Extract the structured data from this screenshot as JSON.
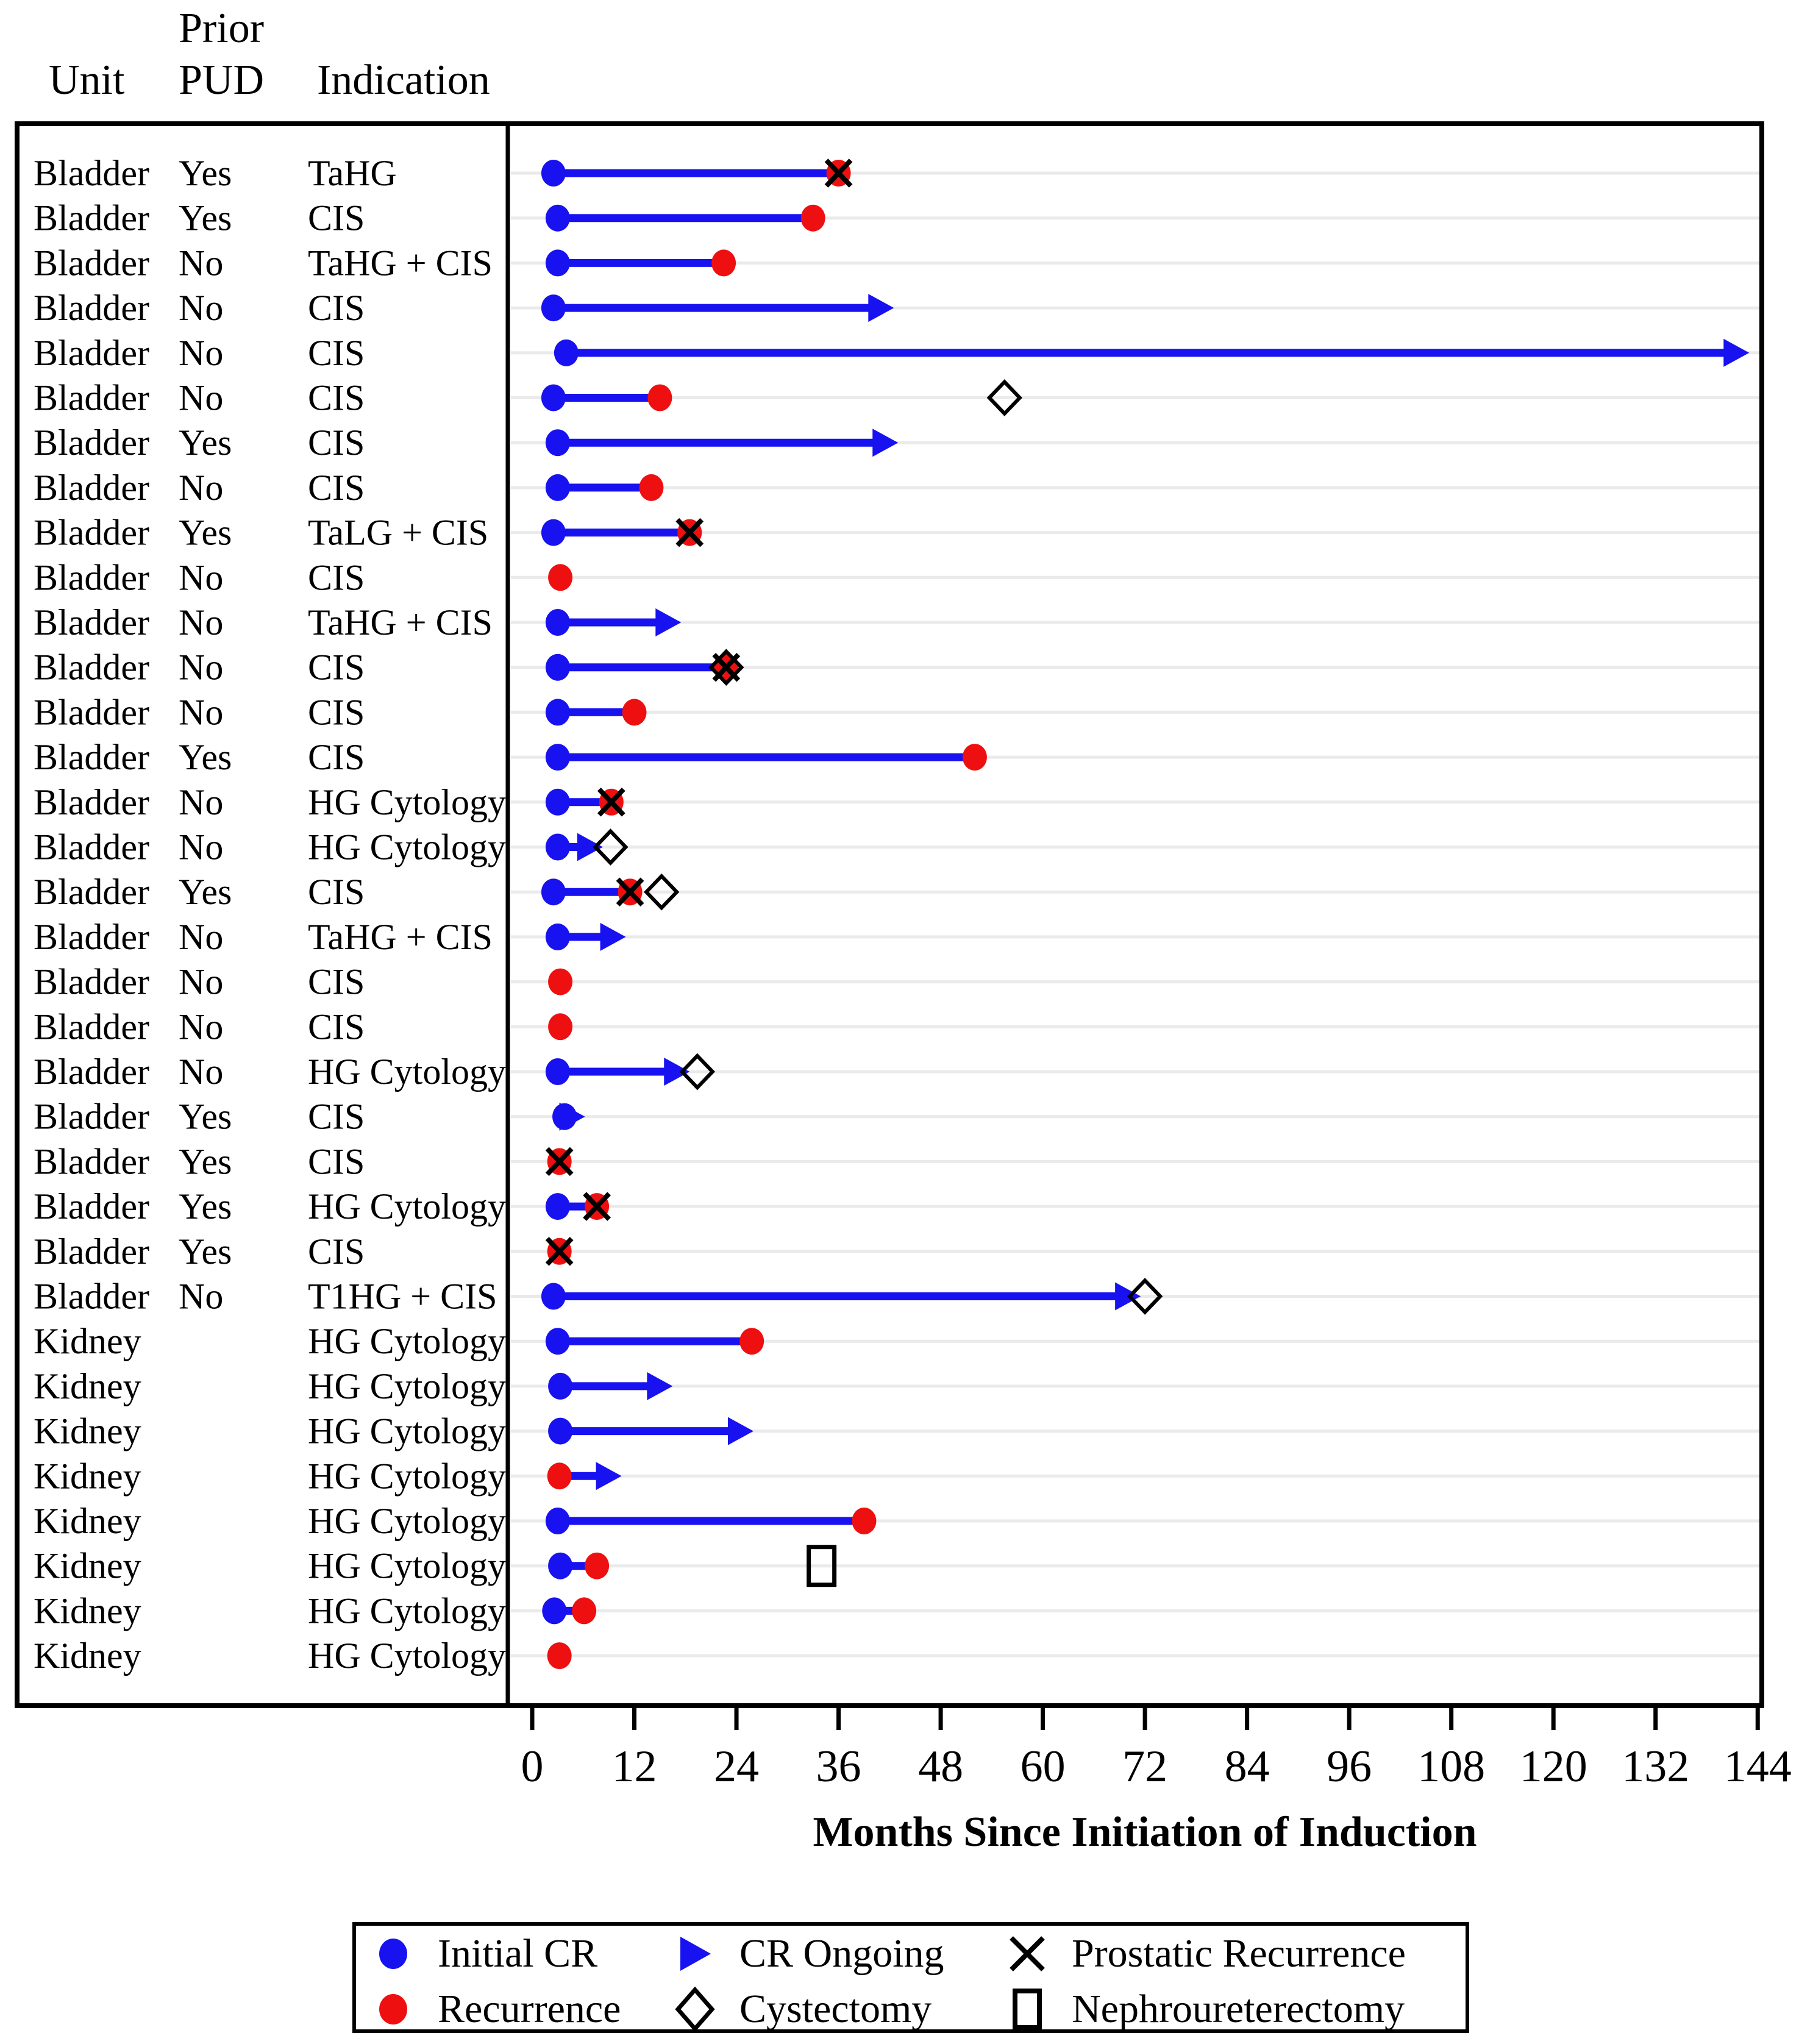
{
  "header": {
    "unit_label": "Unit",
    "prior_pud_line1": "Prior",
    "prior_pud_line2": "PUD",
    "indication_label": "Indication"
  },
  "axis_title": "Months Since Initiation of Induction",
  "colors": {
    "cr_blue": "#1712ef",
    "recurrence_red": "#ee1010",
    "grid_gray": "#eaeaea",
    "frame_black": "#000000"
  },
  "legend": {
    "items": [
      {
        "symbol": "initial-cr",
        "label": "Initial CR"
      },
      {
        "symbol": "recurrence",
        "label": "Recurrence"
      },
      {
        "symbol": "cr-ongoing",
        "label": "CR Ongoing"
      },
      {
        "symbol": "cystectomy",
        "label": "Cystectomy"
      },
      {
        "symbol": "prostatic-recurrence",
        "label": "Prostatic Recurrence"
      },
      {
        "symbol": "nephroureterectomy",
        "label": "Nephroureterectomy"
      }
    ]
  },
  "chart_data": {
    "type": "swimmer",
    "xlabel": "Months Since Initiation of Induction",
    "x_ticks": [
      0,
      12,
      24,
      36,
      48,
      60,
      72,
      84,
      96,
      108,
      120,
      132,
      144
    ],
    "xlim": [
      -3.5,
      144.5
    ],
    "columns": [
      "Unit",
      "Prior PUD",
      "Indication"
    ],
    "event_key": {
      "cr": "Initial CR (blue dot), month",
      "rec": "Recurrence (red dot), month",
      "px": "Prostatic Recurrence (X), month",
      "arrow": "CR Ongoing (arrow tip), month",
      "dia": "Cystectomy (open diamond), month",
      "sq": "Nephroureterectomy (open square), month"
    },
    "rows": [
      {
        "unit": "Bladder",
        "pud": "Yes",
        "ind": "TaHG",
        "cr": 2.5,
        "rec": 36,
        "px": 36
      },
      {
        "unit": "Bladder",
        "pud": "Yes",
        "ind": "CIS",
        "cr": 3,
        "rec": 33
      },
      {
        "unit": "Bladder",
        "pud": "No",
        "ind": "TaHG + CIS",
        "cr": 3,
        "rec": 22.5
      },
      {
        "unit": "Bladder",
        "pud": "No",
        "ind": "CIS",
        "cr": 2.5,
        "arrow": 42.5
      },
      {
        "unit": "Bladder",
        "pud": "No",
        "ind": "CIS",
        "cr": 4,
        "arrow": 143
      },
      {
        "unit": "Bladder",
        "pud": "No",
        "ind": "CIS",
        "cr": 2.5,
        "rec": 15,
        "dia": 55.5
      },
      {
        "unit": "Bladder",
        "pud": "Yes",
        "ind": "CIS",
        "cr": 3,
        "arrow": 43
      },
      {
        "unit": "Bladder",
        "pud": "No",
        "ind": "CIS",
        "cr": 3,
        "rec": 14
      },
      {
        "unit": "Bladder",
        "pud": "Yes",
        "ind": "TaLG + CIS",
        "cr": 2.5,
        "rec": 18.5,
        "px": 18.5
      },
      {
        "unit": "Bladder",
        "pud": "No",
        "ind": "CIS",
        "rec": 3.3
      },
      {
        "unit": "Bladder",
        "pud": "No",
        "ind": "TaHG + CIS",
        "cr": 3,
        "arrow": 17.5
      },
      {
        "unit": "Bladder",
        "pud": "No",
        "ind": "CIS",
        "cr": 3,
        "rec": 22.8,
        "px": 22.8,
        "dia": 22.8
      },
      {
        "unit": "Bladder",
        "pud": "No",
        "ind": "CIS",
        "cr": 3,
        "rec": 12
      },
      {
        "unit": "Bladder",
        "pud": "Yes",
        "ind": "CIS",
        "cr": 3,
        "rec": 52
      },
      {
        "unit": "Bladder",
        "pud": "No",
        "ind": "HG Cytology",
        "cr": 3,
        "rec": 9.3,
        "px": 9.3
      },
      {
        "unit": "Bladder",
        "pud": "No",
        "ind": "HG Cytology",
        "cr": 3,
        "arrow": 8.3,
        "dia": 9.2
      },
      {
        "unit": "Bladder",
        "pud": "Yes",
        "ind": "CIS",
        "cr": 2.5,
        "rec": 11.5,
        "px": 11.5,
        "dia": 15.2
      },
      {
        "unit": "Bladder",
        "pud": "No",
        "ind": "TaHG + CIS",
        "cr": 3,
        "arrow": 11
      },
      {
        "unit": "Bladder",
        "pud": "No",
        "ind": "CIS",
        "rec": 3.3
      },
      {
        "unit": "Bladder",
        "pud": "No",
        "ind": "CIS",
        "rec": 3.3
      },
      {
        "unit": "Bladder",
        "pud": "No",
        "ind": "HG Cytology",
        "cr": 3,
        "arrow": 18.5,
        "dia": 19.4
      },
      {
        "unit": "Bladder",
        "pud": "Yes",
        "ind": "CIS",
        "cr": 3.8,
        "arrow": 6.2
      },
      {
        "unit": "Bladder",
        "pud": "Yes",
        "ind": "CIS",
        "rec": 3.2,
        "px": 3.2
      },
      {
        "unit": "Bladder",
        "pud": "Yes",
        "ind": "HG Cytology",
        "cr": 3,
        "rec": 7.6,
        "px": 7.6
      },
      {
        "unit": "Bladder",
        "pud": "Yes",
        "ind": "CIS",
        "rec": 3.2,
        "px": 3.2
      },
      {
        "unit": "Bladder",
        "pud": "No",
        "ind": "T1HG + CIS",
        "cr": 2.5,
        "arrow": 71.5,
        "dia": 72
      },
      {
        "unit": "Kidney",
        "pud": "",
        "ind": "HG Cytology",
        "cr": 3,
        "rec": 25.8
      },
      {
        "unit": "Kidney",
        "pud": "",
        "ind": "HG Cytology",
        "cr": 3.3,
        "arrow": 16.5
      },
      {
        "unit": "Kidney",
        "pud": "",
        "ind": "HG Cytology",
        "cr": 3.3,
        "arrow": 26
      },
      {
        "unit": "Kidney",
        "pud": "",
        "ind": "HG Cytology",
        "rec": 3.2,
        "arrow": 10.5
      },
      {
        "unit": "Kidney",
        "pud": "",
        "ind": "HG Cytology",
        "cr": 3,
        "rec": 39
      },
      {
        "unit": "Kidney",
        "pud": "",
        "ind": "HG Cytology",
        "cr": 3.3,
        "rec": 7.6,
        "sq": 34
      },
      {
        "unit": "Kidney",
        "pud": "",
        "ind": "HG Cytology",
        "cr": 2.6,
        "rec": 6.1
      },
      {
        "unit": "Kidney",
        "pud": "",
        "ind": "HG Cytology",
        "rec": 3.2
      }
    ]
  }
}
